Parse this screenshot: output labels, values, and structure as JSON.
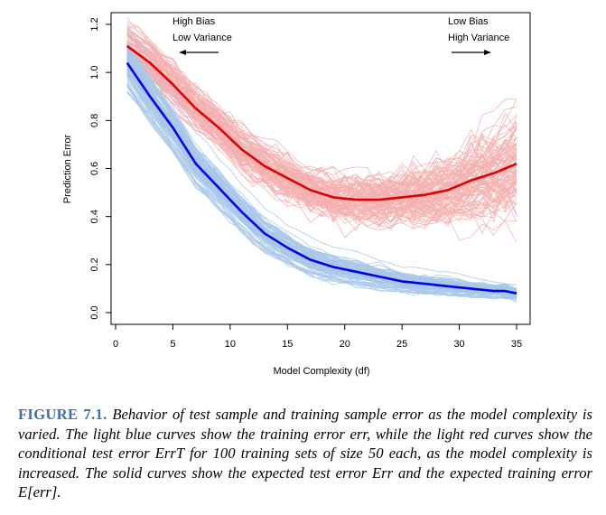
{
  "chart_data": {
    "type": "line",
    "xlabel": "Model Complexity (df)",
    "ylabel": "Prediction Error",
    "xlim": [
      0,
      35
    ],
    "ylim": [
      0,
      1.2
    ],
    "xticks": [
      "0",
      "5",
      "10",
      "15",
      "20",
      "25",
      "30",
      "35"
    ],
    "yticks": [
      "0.0",
      "0.2",
      "0.4",
      "0.6",
      "0.8",
      "1.0",
      "1.2"
    ],
    "annotations": {
      "left_line1": "High Bias",
      "left_line2": "Low Variance",
      "right_line1": "Low Bias",
      "right_line2": "High Variance"
    },
    "x": [
      1,
      3,
      5,
      7,
      9,
      11,
      13,
      15,
      17,
      19,
      21,
      23,
      25,
      27,
      29,
      31,
      33,
      34,
      35
    ],
    "series": [
      {
        "name": "Expected test error Err",
        "color": "#e00000",
        "values": [
          1.11,
          1.04,
          0.95,
          0.85,
          0.77,
          0.68,
          0.61,
          0.56,
          0.51,
          0.48,
          0.47,
          0.47,
          0.48,
          0.49,
          0.51,
          0.55,
          0.58,
          0.6,
          0.62
        ]
      },
      {
        "name": "Expected training error E[err]",
        "color": "#0000ee",
        "values": [
          1.04,
          0.9,
          0.77,
          0.62,
          0.52,
          0.42,
          0.33,
          0.27,
          0.22,
          0.19,
          0.17,
          0.15,
          0.13,
          0.12,
          0.11,
          0.1,
          0.09,
          0.09,
          0.08
        ]
      }
    ],
    "background_curves": {
      "count": 100,
      "test_color": "#f4b0b0",
      "train_color": "#a8c8ea"
    }
  },
  "caption": {
    "label": "FIGURE 7.1.",
    "text": "Behavior of test sample and training sample error as the model complexity is varied. The light blue curves show the training error err, while the light red curves show the conditional test error ErrT for 100 training sets of size 50 each, as the model complexity is increased. The solid curves show the expected test error Err and the expected training error E[err]."
  }
}
